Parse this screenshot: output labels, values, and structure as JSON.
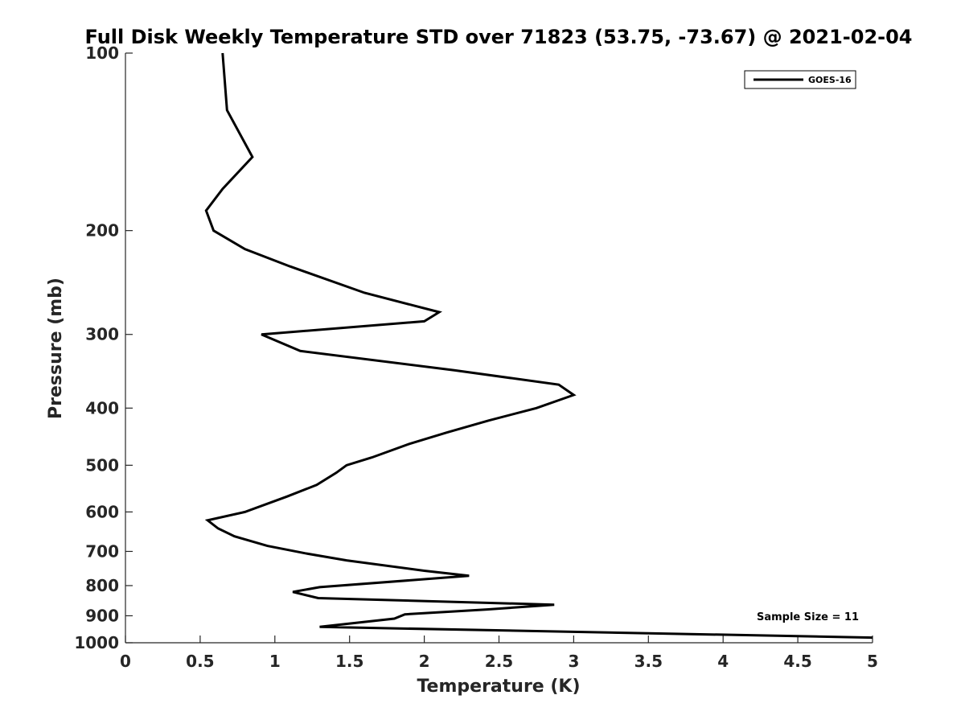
{
  "chart_data": {
    "type": "line",
    "title": "Full Disk Weekly Temperature STD over 71823 (53.75, -73.67) @ 2021-02-04",
    "xlabel": "Temperature (K)",
    "ylabel": "Pressure (mb)",
    "xlim": [
      0,
      5
    ],
    "ylim": [
      100,
      1000
    ],
    "y_scale": "log",
    "y_reversed": true,
    "x_ticks": [
      "0",
      "0.5",
      "1",
      "1.5",
      "2",
      "2.5",
      "3",
      "3.5",
      "4",
      "4.5",
      "5"
    ],
    "x_tick_values": [
      0,
      0.5,
      1,
      1.5,
      2,
      2.5,
      3,
      3.5,
      4,
      4.5,
      5
    ],
    "y_ticks": [
      "100",
      "200",
      "300",
      "400",
      "500",
      "600",
      "700",
      "800",
      "900",
      "1000"
    ],
    "y_tick_values": [
      100,
      200,
      300,
      400,
      500,
      600,
      700,
      800,
      900,
      1000
    ],
    "grid": false,
    "legend_position": "top-right",
    "annotation": "Sample Size = 11",
    "line_color": "#000000",
    "series": [
      {
        "name": "GOES-16",
        "points": [
          [
            0.65,
            100
          ],
          [
            0.68,
            125
          ],
          [
            0.85,
            150
          ],
          [
            0.65,
            170
          ],
          [
            0.54,
            185
          ],
          [
            0.59,
            200
          ],
          [
            0.8,
            215
          ],
          [
            1.1,
            230
          ],
          [
            1.6,
            255
          ],
          [
            2.1,
            275
          ],
          [
            2.0,
            285
          ],
          [
            0.91,
            300
          ],
          [
            1.17,
            320
          ],
          [
            2.2,
            345
          ],
          [
            2.9,
            365
          ],
          [
            3.0,
            380
          ],
          [
            2.75,
            400
          ],
          [
            2.43,
            420
          ],
          [
            2.15,
            440
          ],
          [
            1.9,
            460
          ],
          [
            1.65,
            485
          ],
          [
            1.48,
            500
          ],
          [
            1.41,
            515
          ],
          [
            1.28,
            540
          ],
          [
            1.08,
            565
          ],
          [
            0.8,
            600
          ],
          [
            0.55,
            620
          ],
          [
            0.62,
            640
          ],
          [
            0.73,
            660
          ],
          [
            0.95,
            685
          ],
          [
            1.2,
            705
          ],
          [
            1.48,
            725
          ],
          [
            2.0,
            755
          ],
          [
            2.3,
            770
          ],
          [
            1.3,
            805
          ],
          [
            1.12,
            820
          ],
          [
            1.29,
            840
          ],
          [
            2.87,
            862
          ],
          [
            2.42,
            878
          ],
          [
            1.87,
            895
          ],
          [
            1.8,
            910
          ],
          [
            1.3,
            940
          ],
          [
            5.0,
            980
          ]
        ]
      }
    ]
  }
}
